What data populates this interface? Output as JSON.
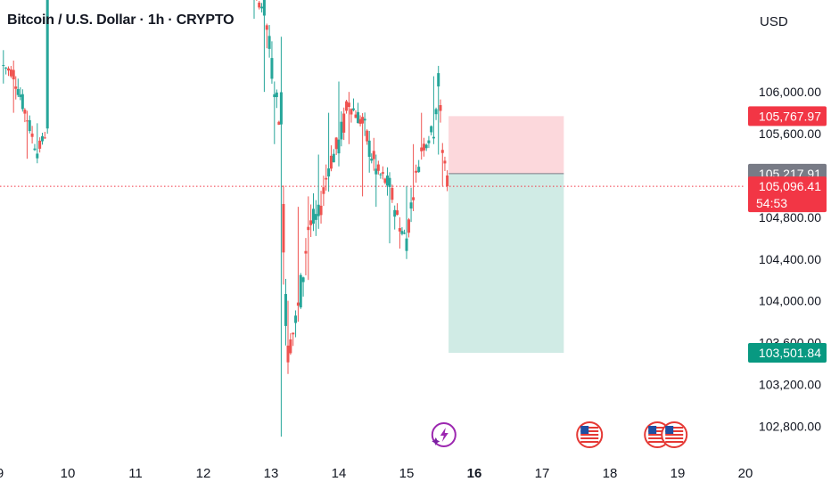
{
  "header": {
    "title": "Bitcoin / U.S. Dollar · 1h · CRYPTO",
    "currency": "USD"
  },
  "colors": {
    "up": "#26a69a",
    "down": "#ef5350",
    "stop_zone": "#fcd8dc",
    "target_zone": "#d0ebe5",
    "last_price_badge": "#f23645",
    "entry_badge": "#787b86",
    "target_badge": "#089981",
    "grid_text": "#131722"
  },
  "chart_data": {
    "type": "candlestick",
    "symbol": "Bitcoin / U.S. Dollar",
    "interval": "1h",
    "exchange": "CRYPTO",
    "y_axis": {
      "unit": "USD",
      "range": [
        102530,
        106880
      ],
      "ticks": [
        "106,000.00",
        "105,600.00",
        "104,800.00",
        "104,400.00",
        "104,000.00",
        "103,600.00",
        "103,200.00",
        "102,800.00"
      ],
      "tick_values": [
        106000,
        105600,
        104800,
        104400,
        104000,
        103600,
        103200,
        102800
      ]
    },
    "x_axis": {
      "range": [
        9.0,
        20.0
      ],
      "labels": [
        "9",
        "10",
        "11",
        "12",
        "13",
        "14",
        "15",
        "16",
        "17",
        "18",
        "19",
        "20"
      ],
      "label_values": [
        9,
        10,
        11,
        12,
        13,
        14,
        15,
        16,
        17,
        18,
        19,
        20
      ],
      "bold_label": "16"
    },
    "ohlc_points": [
      {
        "t": 9.05,
        "o": 106250,
        "h": 106400,
        "l": 106080,
        "c": 106280
      },
      {
        "t": 9.2,
        "o": 106180,
        "h": 106300,
        "l": 105800,
        "c": 105880
      },
      {
        "t": 9.4,
        "o": 105750,
        "h": 105820,
        "l": 105360,
        "c": 105420
      },
      {
        "t": 9.55,
        "o": 105420,
        "h": 105700,
        "l": 105350,
        "c": 105650
      },
      {
        "t": 9.7,
        "o": 105650,
        "h": 107000,
        "l": 105600,
        "c": 106950
      },
      {
        "t": 12.75,
        "o": 106900,
        "h": 106950,
        "l": 106700,
        "c": 106800
      },
      {
        "t": 12.9,
        "o": 106800,
        "h": 106850,
        "l": 106000,
        "c": 106100
      },
      {
        "t": 13.05,
        "o": 106050,
        "h": 106100,
        "l": 105500,
        "c": 105650
      },
      {
        "t": 13.15,
        "o": 105650,
        "h": 105700,
        "l": 102700,
        "c": 103700
      },
      {
        "t": 13.25,
        "o": 103500,
        "h": 104000,
        "l": 103300,
        "c": 103900
      },
      {
        "t": 13.4,
        "o": 103900,
        "h": 104900,
        "l": 103800,
        "c": 104700
      },
      {
        "t": 13.55,
        "o": 104700,
        "h": 105000,
        "l": 104200,
        "c": 104800
      },
      {
        "t": 13.7,
        "o": 104800,
        "h": 105400,
        "l": 104700,
        "c": 105300
      },
      {
        "t": 13.85,
        "o": 105300,
        "h": 105800,
        "l": 105100,
        "c": 105500
      },
      {
        "t": 14.0,
        "o": 105500,
        "h": 106100,
        "l": 105300,
        "c": 105900
      },
      {
        "t": 14.15,
        "o": 105900,
        "h": 106000,
        "l": 105500,
        "c": 105700
      },
      {
        "t": 14.35,
        "o": 105700,
        "h": 105750,
        "l": 105000,
        "c": 105250
      },
      {
        "t": 14.55,
        "o": 105250,
        "h": 105400,
        "l": 104900,
        "c": 105100
      },
      {
        "t": 14.75,
        "o": 105100,
        "h": 105150,
        "l": 104550,
        "c": 104700
      },
      {
        "t": 14.9,
        "o": 104700,
        "h": 104800,
        "l": 104500,
        "c": 104600
      },
      {
        "t": 15.0,
        "o": 104600,
        "h": 105100,
        "l": 104400,
        "c": 105050
      },
      {
        "t": 15.1,
        "o": 105050,
        "h": 105500,
        "l": 105000,
        "c": 105450
      },
      {
        "t": 15.22,
        "o": 105450,
        "h": 105800,
        "l": 105400,
        "c": 105650
      },
      {
        "t": 15.4,
        "o": 105650,
        "h": 106150,
        "l": 105500,
        "c": 106100
      },
      {
        "t": 15.47,
        "o": 106100,
        "h": 106120,
        "l": 105400,
        "c": 105450
      },
      {
        "t": 15.53,
        "o": 105450,
        "h": 105500,
        "l": 105100,
        "c": 105200
      },
      {
        "t": 15.6,
        "o": 105200,
        "h": 105250,
        "l": 105050,
        "c": 105096
      }
    ],
    "position_tool": {
      "t_start": 15.62,
      "t_end": 17.32,
      "stop": 105767.97,
      "entry": 105217.91,
      "target": 103501.84
    },
    "price_labels": [
      {
        "value": 105767.97,
        "text": "105,767.97",
        "kind": "stop"
      },
      {
        "value": 105217.91,
        "text": "105,217.91",
        "kind": "entry"
      },
      {
        "value": 105096.41,
        "text": "105,096.41",
        "kind": "last",
        "countdown": "54:53"
      },
      {
        "value": 103501.84,
        "text": "103,501.84",
        "kind": "target"
      }
    ],
    "events": [
      {
        "t": 15.55,
        "icon": "lightning-icon"
      },
      {
        "t": 17.7,
        "icon": "us-flag-icon"
      },
      {
        "t": 18.7,
        "icon": "us-flag-icon"
      },
      {
        "t": 18.95,
        "icon": "us-flag-icon"
      }
    ]
  }
}
